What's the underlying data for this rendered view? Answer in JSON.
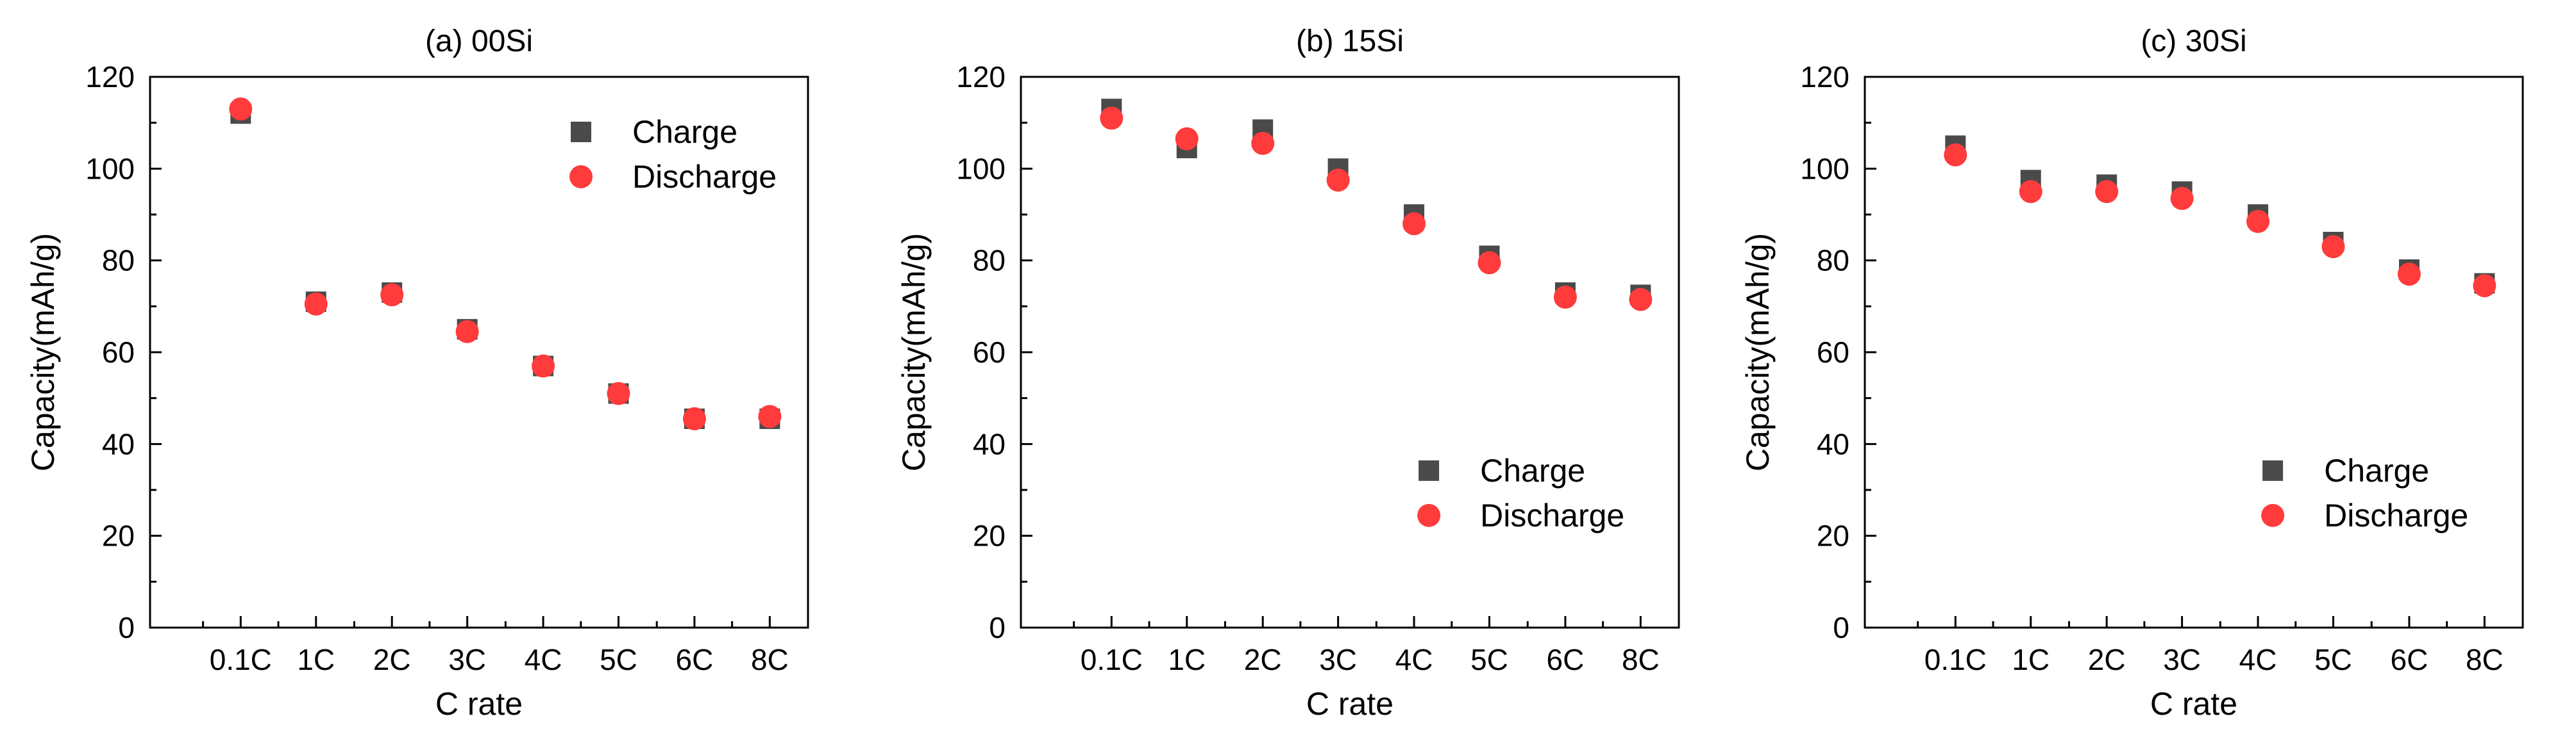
{
  "chart_data": [
    {
      "type": "scatter",
      "title": "(a) 00Si",
      "xlabel": "C rate",
      "ylabel": "Capacity(mAh/g)",
      "ylim": [
        0,
        120
      ],
      "yticks": [
        0,
        20,
        40,
        60,
        80,
        100,
        120
      ],
      "categories": [
        "0.1C",
        "1C",
        "2C",
        "3C",
        "4C",
        "5C",
        "6C",
        "8C"
      ],
      "legend_position": "top-right",
      "series": [
        {
          "name": "Charge",
          "marker": "square",
          "color": "#4a4a4a",
          "values": [
            112,
            71,
            73,
            65,
            57,
            51,
            45.5,
            45.5
          ]
        },
        {
          "name": "Discharge",
          "marker": "circle",
          "color": "#ff3b3b",
          "values": [
            113,
            70.5,
            72.5,
            64.5,
            57,
            51,
            45.5,
            46
          ]
        }
      ]
    },
    {
      "type": "scatter",
      "title": "(b) 15Si",
      "xlabel": "C rate",
      "ylabel": "Capacity(mAh/g)",
      "ylim": [
        0,
        120
      ],
      "yticks": [
        0,
        20,
        40,
        60,
        80,
        100,
        120
      ],
      "categories": [
        "0.1C",
        "1C",
        "2C",
        "3C",
        "4C",
        "5C",
        "6C",
        "8C"
      ],
      "legend_position": "bottom-right",
      "series": [
        {
          "name": "Charge",
          "marker": "square",
          "color": "#4a4a4a",
          "values": [
            113,
            104.5,
            108.5,
            100,
            90,
            81,
            73,
            72.5
          ]
        },
        {
          "name": "Discharge",
          "marker": "circle",
          "color": "#ff3b3b",
          "values": [
            111,
            106.5,
            105.5,
            97.5,
            88,
            79.5,
            72,
            71.5
          ]
        }
      ]
    },
    {
      "type": "scatter",
      "title": "(c) 30Si",
      "xlabel": "C rate",
      "ylabel": "Capacity(mAh/g)",
      "ylim": [
        0,
        120
      ],
      "yticks": [
        0,
        20,
        40,
        60,
        80,
        100,
        120
      ],
      "categories": [
        "0.1C",
        "1C",
        "2C",
        "3C",
        "4C",
        "5C",
        "6C",
        "8C"
      ],
      "legend_position": "bottom-right",
      "series": [
        {
          "name": "Charge",
          "marker": "square",
          "color": "#4a4a4a",
          "values": [
            105,
            97.5,
            96.5,
            95,
            90,
            84,
            78,
            75
          ]
        },
        {
          "name": "Discharge",
          "marker": "circle",
          "color": "#ff3b3b",
          "values": [
            103,
            95,
            95,
            93.5,
            88.5,
            83,
            77,
            74.5
          ]
        }
      ]
    }
  ]
}
